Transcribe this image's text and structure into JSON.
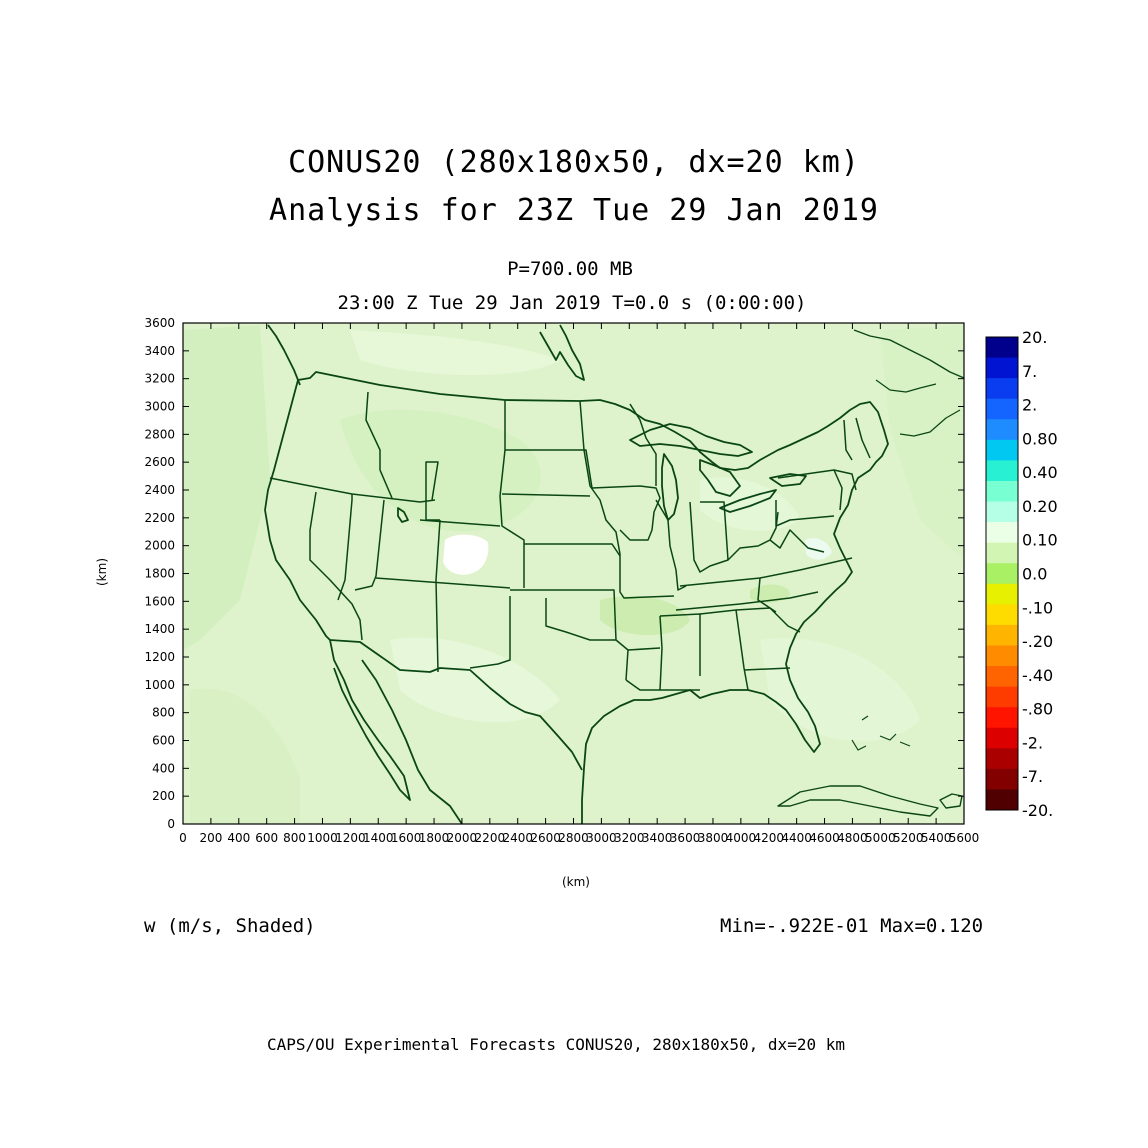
{
  "header": {
    "title_line1": "CONUS20 (280x180x50, dx=20 km)",
    "title_line2": "Analysis for 23Z Tue 29 Jan 2019",
    "level": "P=700.00 MB",
    "time": "23:00 Z Tue 29 Jan 2019   T=0.0 s (0:00:00)"
  },
  "field": {
    "label": "w (m/s, Shaded)",
    "minmax": "Min=-.922E-01 Max=0.120"
  },
  "footer": {
    "text": "CAPS/OU Experimental Forecasts  CONUS20, 280x180x50, dx=20 km"
  },
  "axes": {
    "x_label": "(km)",
    "y_label": "(km)",
    "x_ticks": [
      "0",
      "200",
      "400",
      "600",
      "800",
      "1000",
      "1200",
      "1400",
      "1600",
      "1800",
      "2000",
      "2200",
      "2400",
      "2600",
      "2800",
      "3000",
      "3200",
      "3400",
      "3600",
      "3800",
      "4000",
      "4200",
      "4400",
      "4600",
      "4800",
      "5000",
      "5200",
      "5400",
      "5600"
    ],
    "y_ticks": [
      "0",
      "200",
      "400",
      "600",
      "800",
      "1000",
      "1200",
      "1400",
      "1600",
      "1800",
      "2000",
      "2200",
      "2400",
      "2600",
      "2800",
      "3000",
      "3200",
      "3400",
      "3600"
    ],
    "x_range": [
      0,
      5600
    ],
    "y_range": [
      0,
      3600
    ]
  },
  "colorbar": {
    "labels": [
      "20.",
      "7.",
      "2.",
      "0.80",
      "0.40",
      "0.20",
      "0.10",
      "0.0",
      "-.10",
      "-.20",
      "-.40",
      "-.80",
      "-2.",
      "-7.",
      "-20."
    ],
    "colors": [
      "#00008c",
      "#0014d2",
      "#0a3cf0",
      "#1464ff",
      "#1e8cff",
      "#00c8f0",
      "#28f0d2",
      "#78ffd2",
      "#b4ffe6",
      "#ebffe6",
      "#d2f5b4",
      "#aaf064",
      "#e6f000",
      "#ffdc00",
      "#ffb400",
      "#ff8c00",
      "#ff6400",
      "#ff3c00",
      "#ff1400",
      "#dc0000",
      "#aa0000",
      "#820000",
      "#500000"
    ]
  },
  "colors": {
    "background_field": "#dff5cd",
    "land_border": "#0a4614"
  }
}
